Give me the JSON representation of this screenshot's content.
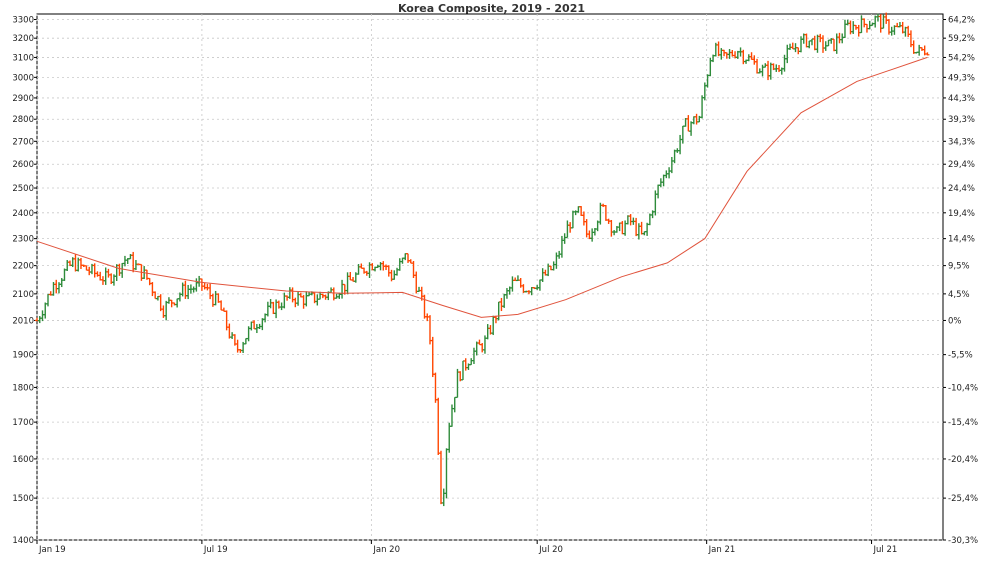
{
  "title": "Korea Composite, 2019 - 2021",
  "chart_data": {
    "type": "line",
    "title": "Korea Composite, 2019 - 2021",
    "xlabel": "",
    "ylabel": "",
    "x_ticks": [
      "Jan 19",
      "Jul 19",
      "Jan 20",
      "Jul 20",
      "Jan 21",
      "Jul 21"
    ],
    "ylim": [
      1400,
      3330
    ],
    "y_log_scale": true,
    "y_ticks": [
      1400,
      1500,
      1600,
      1700,
      1800,
      1900,
      2010,
      2100,
      2200,
      2300,
      2400,
      2500,
      2600,
      2700,
      2800,
      2900,
      3000,
      3100,
      3200,
      3300
    ],
    "y2_ticks": [
      "64,2%",
      "59,2%",
      "54,2%",
      "49,3%",
      "44,3%",
      "39,3%",
      "34,3%",
      "29,4%",
      "24,4%",
      "19,4%",
      "14,4%",
      "9,5%",
      "4,5%",
      "0%",
      "-5,5%",
      "-10,4%",
      "-15,4%",
      "-20,4%",
      "-25,4%",
      "-30,3%"
    ],
    "y2_tick_values": [
      3300,
      3200,
      3100,
      3000,
      2900,
      2800,
      2700,
      2600,
      2500,
      2400,
      2300,
      2200,
      2100,
      2010,
      1900,
      1800,
      1700,
      1600,
      1500,
      1400
    ],
    "grid": true,
    "colors": {
      "up": "#2e8b3a",
      "down": "#ff4500",
      "average": "#e0533c",
      "grid": "#c8c8c8",
      "axis": "#000000"
    },
    "series": [
      {
        "style": "ohlc-bars",
        "x": [
          "2019-01-02",
          "2019-01-20",
          "2019-02-10",
          "2019-03-01",
          "2019-03-20",
          "2019-04-10",
          "2019-05-01",
          "2019-05-20",
          "2019-06-10",
          "2019-07-01",
          "2019-07-20",
          "2019-08-07",
          "2019-08-25",
          "2019-09-15",
          "2019-10-05",
          "2019-10-25",
          "2019-11-15",
          "2019-12-05",
          "2019-12-25",
          "2020-01-10",
          "2020-01-25",
          "2020-02-10",
          "2020-02-25",
          "2020-03-05",
          "2020-03-12",
          "2020-03-19",
          "2020-03-25",
          "2020-04-05",
          "2020-04-20",
          "2020-05-05",
          "2020-05-20",
          "2020-06-05",
          "2020-06-20",
          "2020-07-05",
          "2020-07-20",
          "2020-08-05",
          "2020-08-15",
          "2020-08-25",
          "2020-09-10",
          "2020-09-25",
          "2020-10-10",
          "2020-10-25",
          "2020-11-10",
          "2020-11-25",
          "2020-12-10",
          "2020-12-25",
          "2021-01-08",
          "2021-01-20",
          "2021-02-05",
          "2021-02-20",
          "2021-03-05",
          "2021-03-20",
          "2021-04-05",
          "2021-04-20",
          "2021-05-05",
          "2021-05-20",
          "2021-06-05",
          "2021-06-20",
          "2021-07-05",
          "2021-07-20",
          "2021-08-05",
          "2021-08-20",
          "2021-08-31"
        ],
        "values": [
          2010,
          2130,
          2210,
          2180,
          2150,
          2230,
          2160,
          2050,
          2110,
          2130,
          2060,
          1910,
          1990,
          2050,
          2090,
          2080,
          2100,
          2130,
          2190,
          2220,
          2160,
          2240,
          2080,
          1980,
          1760,
          1460,
          1670,
          1830,
          1900,
          1940,
          2050,
          2140,
          2120,
          2150,
          2200,
          2360,
          2400,
          2310,
          2420,
          2320,
          2370,
          2300,
          2500,
          2620,
          2770,
          2810,
          3150,
          3090,
          3140,
          3080,
          3030,
          3050,
          3140,
          3190,
          3170,
          3160,
          3260,
          3270,
          3300,
          3260,
          3240,
          3120,
          3150
        ]
      },
      {
        "style": "line",
        "x": [
          "2019-01-02",
          "2019-04-01",
          "2019-07-01",
          "2019-10-01",
          "2019-12-01",
          "2020-02-05",
          "2020-03-20",
          "2020-05-01",
          "2020-06-10",
          "2020-08-01",
          "2020-10-01",
          "2020-11-20",
          "2020-12-31",
          "2021-02-15",
          "2021-04-15",
          "2021-06-15",
          "2021-08-31"
        ],
        "values": [
          2290,
          2190,
          2140,
          2110,
          2102,
          2105,
          2060,
          2020,
          2030,
          2080,
          2160,
          2210,
          2300,
          2570,
          2830,
          2980,
          3100
        ]
      }
    ]
  }
}
